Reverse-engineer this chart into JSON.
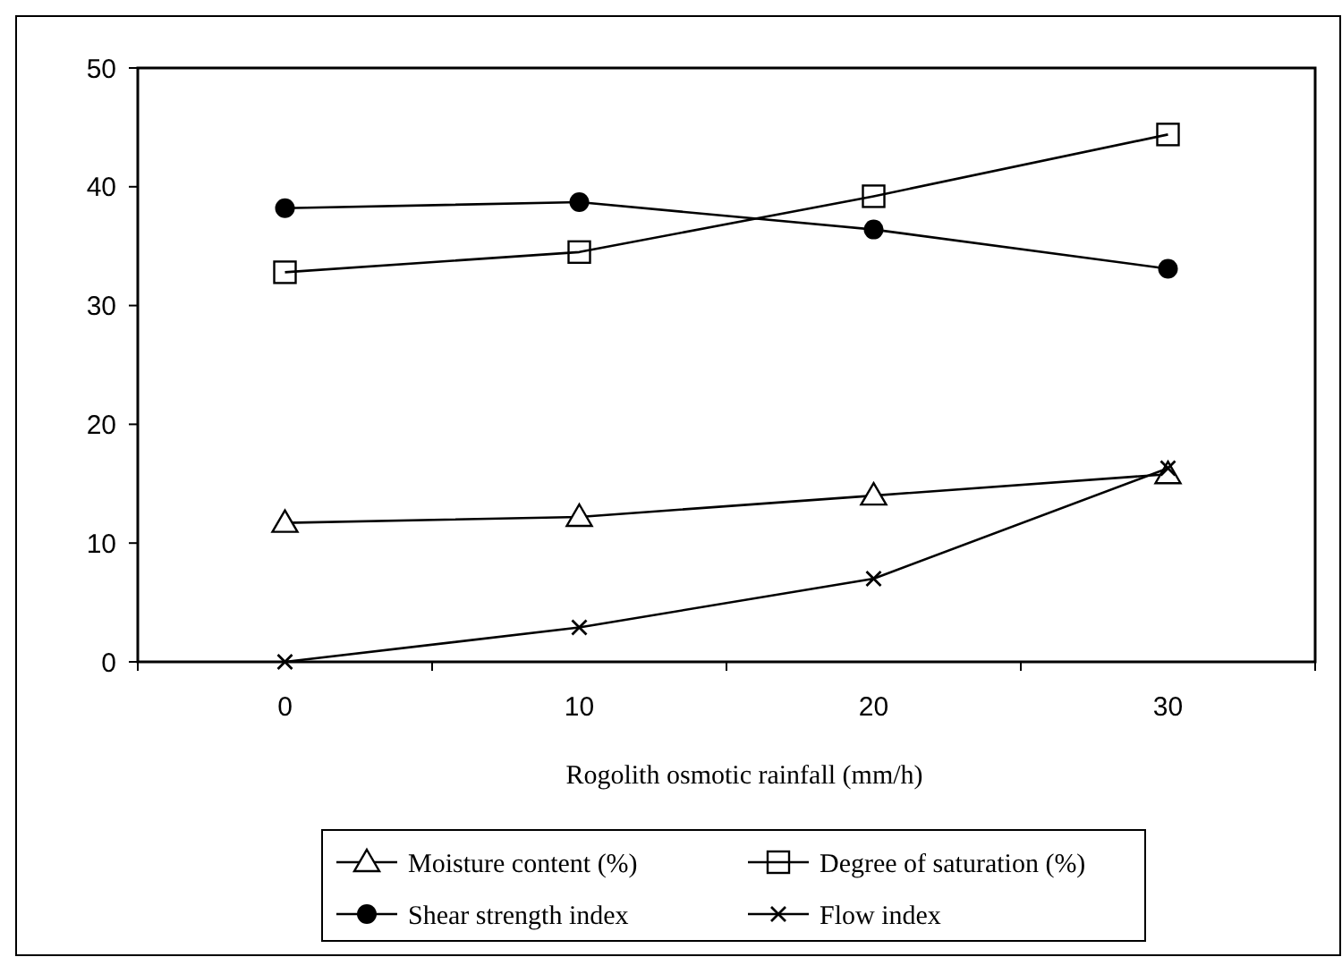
{
  "chart_data": {
    "type": "line",
    "xlabel": "Rogolith osmotic rainfall (mm/h)",
    "categories": [
      "0",
      "10",
      "20",
      "30"
    ],
    "series": [
      {
        "name": "Moisture content (%)",
        "color": "#000000",
        "marker": "triangle",
        "values": [
          11.7,
          12.2,
          14,
          15.8
        ]
      },
      {
        "name": "Degree of saturation (%)",
        "color": "#000000",
        "marker": "square",
        "values": [
          32.8,
          34.5,
          39.2,
          44.4
        ]
      },
      {
        "name": "Shear strength index",
        "color": "#000000",
        "marker": "circle",
        "values": [
          38.2,
          38.7,
          36.4,
          33.1
        ]
      },
      {
        "name": "Flow index",
        "color": "#000000",
        "marker": "cross",
        "values": [
          0,
          2.9,
          7,
          16.3
        ]
      }
    ],
    "ylim": [
      0,
      50
    ],
    "yticks": [
      0,
      10,
      20,
      30,
      40,
      50
    ],
    "grid": false,
    "legend": "bottom"
  }
}
